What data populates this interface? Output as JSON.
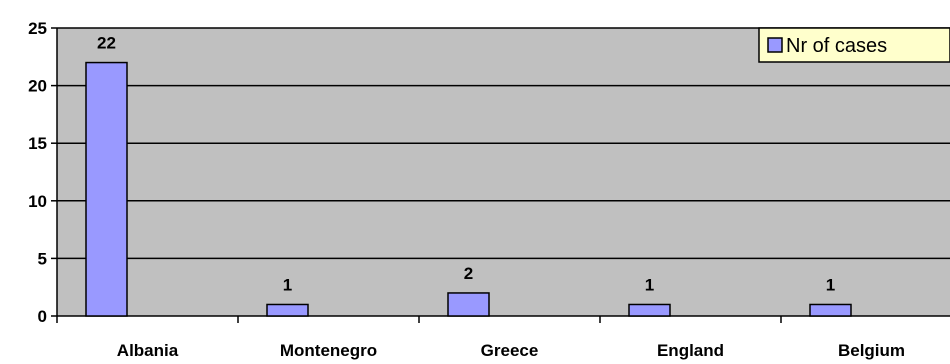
{
  "chart_data": {
    "type": "bar",
    "categories": [
      "Albania",
      "Montenegro",
      "Greece",
      "England",
      "Belgium"
    ],
    "series": [
      {
        "name": "Nr of cases",
        "values": [
          22,
          1,
          2,
          1,
          1
        ]
      }
    ],
    "ylim": [
      0,
      25
    ],
    "yticks": [
      0,
      5,
      10,
      15,
      20,
      25
    ],
    "grid": true,
    "legend": "top-right",
    "colors": {
      "bar": "#9999ff",
      "plot_bg": "#c0c0c0",
      "legend_bg": "#ffffcc"
    }
  }
}
